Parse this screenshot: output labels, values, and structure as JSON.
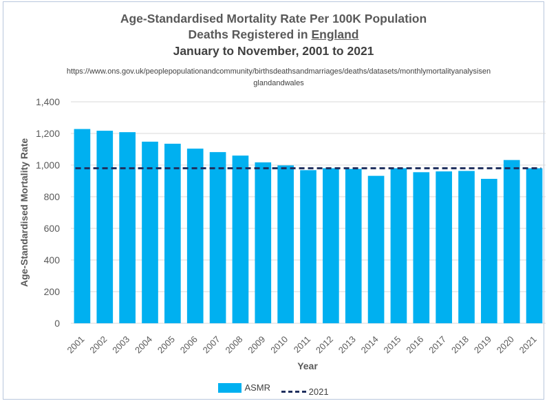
{
  "titles": {
    "line1": "Age-Standardised Mortality Rate Per 100K Population",
    "line2_prefix": "Deaths Registered in ",
    "line2_underlined": "England",
    "line3": "January to November, 2001 to 2021",
    "source": "https://www.ons.gov.uk/peoplepopulationandcommunity/birthsdeathsandmarriages/deaths/datasets/monthlymortalityanalysisenglandandwales"
  },
  "colors": {
    "bar": "#00b0f0",
    "reference_line": "#1f2f5e",
    "grid": "#d9d9d9",
    "axis_text": "#595959"
  },
  "chart_data": {
    "type": "bar",
    "xlabel": "Year",
    "ylabel": "Age-Standardised Mortality Rate",
    "ylim": [
      0,
      1400
    ],
    "yticks": [
      "0",
      "200",
      "400",
      "600",
      "800",
      "1,000",
      "1,200",
      "1,400"
    ],
    "ytick_values": [
      0,
      200,
      400,
      600,
      800,
      1000,
      1200,
      1400
    ],
    "grid": true,
    "legend_position": "bottom",
    "categories": [
      "2001",
      "2002",
      "2003",
      "2004",
      "2005",
      "2006",
      "2007",
      "2008",
      "2009",
      "2010",
      "2011",
      "2012",
      "2013",
      "2014",
      "2015",
      "2016",
      "2017",
      "2018",
      "2019",
      "2020",
      "2021"
    ],
    "series": [
      {
        "name": "ASMR",
        "type": "bar",
        "values": [
          1228,
          1217,
          1208,
          1148,
          1135,
          1104,
          1082,
          1060,
          1017,
          998,
          968,
          980,
          976,
          932,
          980,
          955,
          960,
          963,
          913,
          1032,
          980
        ]
      },
      {
        "name": "2021",
        "type": "line",
        "style": "dashed",
        "value": 980
      }
    ]
  }
}
